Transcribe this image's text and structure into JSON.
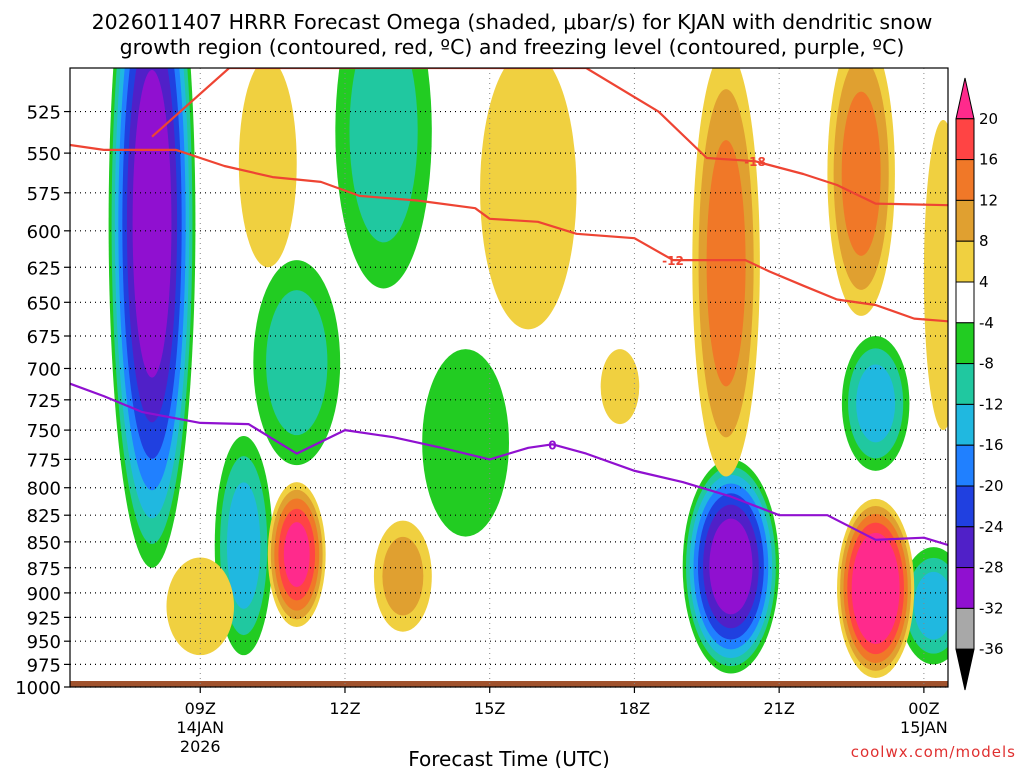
{
  "chart_data": {
    "type": "heatmap",
    "title_line1": "2026011407 HRRR Forecast Omega (shaded, μbar/s) for KJAN with dendritic snow",
    "title_line2": "growth region (contoured, red, ºC) and freezing level (contoured, purple, ºC)",
    "xlabel": "Forecast Time (UTC)",
    "credit": "coolwx.com/models",
    "x_range_hours": [
      6.3,
      24.5
    ],
    "y_range_hPa": [
      500,
      1000
    ],
    "x_ticks": [
      {
        "hour": 9,
        "label": "09Z",
        "sub1": "14JAN",
        "sub2": "2026"
      },
      {
        "hour": 12,
        "label": "12Z",
        "sub1": "",
        "sub2": ""
      },
      {
        "hour": 15,
        "label": "15Z",
        "sub1": "",
        "sub2": ""
      },
      {
        "hour": 18,
        "label": "18Z",
        "sub1": "",
        "sub2": ""
      },
      {
        "hour": 21,
        "label": "21Z",
        "sub1": "",
        "sub2": ""
      },
      {
        "hour": 24,
        "label": "00Z",
        "sub1": "15JAN",
        "sub2": ""
      }
    ],
    "y_ticks": [
      525,
      550,
      575,
      600,
      625,
      650,
      675,
      700,
      725,
      750,
      775,
      800,
      825,
      850,
      875,
      900,
      925,
      950,
      975,
      1000
    ],
    "colorbar": {
      "labels": [
        "20",
        "16",
        "12",
        "8",
        "4",
        "-4",
        "-8",
        "-12",
        "-16",
        "-20",
        "-24",
        "-28",
        "-32",
        "-36"
      ],
      "colors": [
        "#ff2a8c",
        "#ff4444",
        "#f07828",
        "#e0a030",
        "#f0d040",
        "#ffffff",
        "#22cc22",
        "#20c8a0",
        "#20b8e0",
        "#2080ff",
        "#2040e0",
        "#5020c8",
        "#9010d0",
        "#a8a8a8",
        "#000000"
      ]
    },
    "dendritic_contours": [
      {
        "level": -18,
        "label": "-18",
        "color": "#ee4433",
        "points": [
          [
            8.0,
            540
          ],
          [
            9.6,
            500
          ],
          [
            12.0,
            500
          ],
          [
            14.5,
            500
          ],
          [
            15.5,
            500
          ],
          [
            17.0,
            500
          ],
          [
            18.5,
            525
          ],
          [
            19.5,
            553
          ],
          [
            20.5,
            555
          ],
          [
            21.5,
            563
          ],
          [
            22.2,
            570
          ],
          [
            23.0,
            582
          ],
          [
            24.5,
            583
          ]
        ]
      },
      {
        "level": -12,
        "label": "-12",
        "color": "#ee4433",
        "points": [
          [
            6.3,
            545
          ],
          [
            7.0,
            548
          ],
          [
            8.5,
            548
          ],
          [
            9.5,
            558
          ],
          [
            10.5,
            565
          ],
          [
            11.5,
            568
          ],
          [
            12.3,
            577
          ],
          [
            13.5,
            580
          ],
          [
            14.7,
            585
          ],
          [
            15.0,
            592
          ],
          [
            16.0,
            594
          ],
          [
            16.8,
            602
          ],
          [
            18.0,
            605
          ],
          [
            18.8,
            620
          ],
          [
            19.7,
            620
          ],
          [
            20.3,
            620
          ],
          [
            20.8,
            628
          ],
          [
            21.5,
            638
          ],
          [
            22.2,
            648
          ],
          [
            23.0,
            652
          ],
          [
            23.8,
            662
          ],
          [
            24.5,
            664
          ]
        ]
      }
    ],
    "freezing_level": {
      "level": 0,
      "label": "0",
      "color": "#9010d0",
      "points": [
        [
          6.3,
          712
        ],
        [
          7.0,
          722
        ],
        [
          7.8,
          735
        ],
        [
          9.0,
          744
        ],
        [
          10.0,
          745
        ],
        [
          11.0,
          770
        ],
        [
          12.0,
          750
        ],
        [
          13.0,
          756
        ],
        [
          14.0,
          765
        ],
        [
          15.0,
          775
        ],
        [
          15.8,
          765
        ],
        [
          16.3,
          762
        ],
        [
          17.0,
          770
        ],
        [
          18.0,
          785
        ],
        [
          19.0,
          795
        ],
        [
          20.0,
          808
        ],
        [
          21.0,
          825
        ],
        [
          22.0,
          825
        ],
        [
          23.0,
          848
        ],
        [
          24.0,
          846
        ],
        [
          24.5,
          853
        ]
      ]
    },
    "omega_regions": [
      {
        "sign": "negative",
        "peak": -30,
        "center_hour": 8.0,
        "center_hPa": 640,
        "hw_hours": 0.9,
        "hh_hPa": 235
      },
      {
        "sign": "negative",
        "peak": -8,
        "center_hour": 11.0,
        "center_hPa": 700,
        "hw_hours": 0.9,
        "hh_hPa": 80
      },
      {
        "sign": "negative",
        "peak": -12,
        "center_hour": 9.9,
        "center_hPa": 860,
        "hw_hours": 0.6,
        "hh_hPa": 105
      },
      {
        "sign": "negative",
        "peak": -8,
        "center_hour": 12.8,
        "center_hPa": 545,
        "hw_hours": 1.0,
        "hh_hPa": 95
      },
      {
        "sign": "negative",
        "peak": -6,
        "center_hour": 14.5,
        "center_hPa": 765,
        "hw_hours": 0.9,
        "hh_hPa": 80
      },
      {
        "sign": "negative",
        "peak": -30,
        "center_hour": 20.0,
        "center_hPa": 880,
        "hw_hours": 1.0,
        "hh_hPa": 105
      },
      {
        "sign": "negative",
        "peak": -12,
        "center_hour": 23.0,
        "center_hPa": 730,
        "hw_hours": 0.7,
        "hh_hPa": 55
      },
      {
        "sign": "negative",
        "peak": -12,
        "center_hour": 24.2,
        "center_hPa": 915,
        "hw_hours": 0.7,
        "hh_hPa": 60
      },
      {
        "sign": "positive",
        "peak": 20,
        "center_hour": 11.0,
        "center_hPa": 865,
        "hw_hours": 0.6,
        "hh_hPa": 70
      },
      {
        "sign": "positive",
        "peak": 8,
        "center_hour": 13.2,
        "center_hPa": 885,
        "hw_hours": 0.6,
        "hh_hPa": 55
      },
      {
        "sign": "positive",
        "peak": 26,
        "center_hour": 23.0,
        "center_hPa": 900,
        "hw_hours": 0.8,
        "hh_hPa": 90
      },
      {
        "sign": "positive",
        "peak": 12,
        "center_hour": 19.9,
        "center_hPa": 640,
        "hw_hours": 0.7,
        "hh_hPa": 150
      },
      {
        "sign": "positive",
        "peak": 12,
        "center_hour": 22.7,
        "center_hPa": 570,
        "hw_hours": 0.7,
        "hh_hPa": 90
      },
      {
        "sign": "positive",
        "peak": 6,
        "center_hour": 15.8,
        "center_hPa": 580,
        "hw_hours": 1.0,
        "hh_hPa": 90
      },
      {
        "sign": "positive",
        "peak": 5,
        "center_hour": 10.4,
        "center_hPa": 560,
        "hw_hours": 0.6,
        "hh_hPa": 65
      },
      {
        "sign": "positive",
        "peak": 5,
        "center_hour": 9.0,
        "center_hPa": 915,
        "hw_hours": 0.7,
        "hh_hPa": 50
      },
      {
        "sign": "positive",
        "peak": 5,
        "center_hour": 17.7,
        "center_hPa": 715,
        "hw_hours": 0.4,
        "hh_hPa": 30
      },
      {
        "sign": "positive",
        "peak": 5,
        "center_hour": 24.4,
        "center_hPa": 640,
        "hw_hours": 0.4,
        "hh_hPa": 110
      }
    ]
  }
}
